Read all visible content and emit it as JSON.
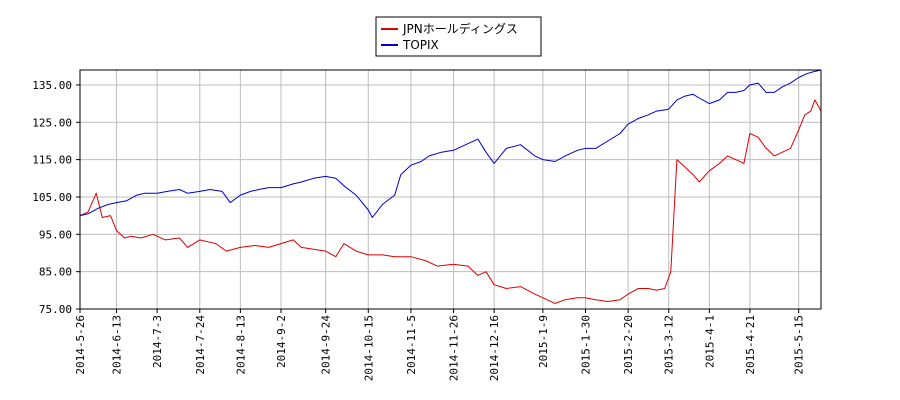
{
  "chart_data": {
    "type": "line",
    "title": "",
    "xlabel": "",
    "ylabel": "",
    "ylim": [
      75,
      139
    ],
    "xlim": [
      "2014-05-26",
      "2015-05-26"
    ],
    "y_ticks": [
      "75.00",
      "85.00",
      "95.00",
      "105.00",
      "115.00",
      "125.00",
      "135.00"
    ],
    "x_ticks": [
      "2014-5-26",
      "2014-6-13",
      "2014-7-3",
      "2014-7-24",
      "2014-8-13",
      "2014-9-2",
      "2014-9-24",
      "2014-10-15",
      "2014-11-5",
      "2014-11-26",
      "2014-12-16",
      "2015-1-9",
      "2015-1-30",
      "2015-2-20",
      "2015-3-12",
      "2015-4-1",
      "2015-4-21",
      "2015-5-15"
    ],
    "grid": true,
    "legend_position": "top-center",
    "series": [
      {
        "name": "JPNホールディングス",
        "color": "#dd0000",
        "points": [
          [
            "2014-05-26",
            100
          ],
          [
            "2014-05-30",
            101
          ],
          [
            "2014-06-03",
            106
          ],
          [
            "2014-06-06",
            99.5
          ],
          [
            "2014-06-10",
            100
          ],
          [
            "2014-06-13",
            96
          ],
          [
            "2014-06-17",
            94
          ],
          [
            "2014-06-20",
            94.5
          ],
          [
            "2014-06-25",
            94
          ],
          [
            "2014-07-01",
            95
          ],
          [
            "2014-07-07",
            93.5
          ],
          [
            "2014-07-14",
            94
          ],
          [
            "2014-07-18",
            91.5
          ],
          [
            "2014-07-24",
            93.5
          ],
          [
            "2014-07-28",
            93
          ],
          [
            "2014-08-01",
            92.5
          ],
          [
            "2014-08-06",
            90.5
          ],
          [
            "2014-08-13",
            91.5
          ],
          [
            "2014-08-20",
            92
          ],
          [
            "2014-08-27",
            91.5
          ],
          [
            "2014-09-02",
            92.5
          ],
          [
            "2014-09-08",
            93.5
          ],
          [
            "2014-09-12",
            91.5
          ],
          [
            "2014-09-18",
            91
          ],
          [
            "2014-09-24",
            90.5
          ],
          [
            "2014-09-29",
            89
          ],
          [
            "2014-10-03",
            92.5
          ],
          [
            "2014-10-09",
            90.5
          ],
          [
            "2014-10-15",
            89.5
          ],
          [
            "2014-10-22",
            89.5
          ],
          [
            "2014-10-28",
            89
          ],
          [
            "2014-11-05",
            89
          ],
          [
            "2014-11-12",
            88
          ],
          [
            "2014-11-18",
            86.5
          ],
          [
            "2014-11-26",
            87
          ],
          [
            "2014-12-03",
            86.5
          ],
          [
            "2014-12-08",
            84
          ],
          [
            "2014-12-12",
            85
          ],
          [
            "2014-12-16",
            81.5
          ],
          [
            "2014-12-22",
            80.5
          ],
          [
            "2014-12-29",
            81
          ],
          [
            "2015-01-05",
            79
          ],
          [
            "2015-01-09",
            78
          ],
          [
            "2015-01-15",
            76.5
          ],
          [
            "2015-01-20",
            77.5
          ],
          [
            "2015-01-26",
            78
          ],
          [
            "2015-01-30",
            78
          ],
          [
            "2015-02-04",
            77.5
          ],
          [
            "2015-02-10",
            77
          ],
          [
            "2015-02-16",
            77.5
          ],
          [
            "2015-02-20",
            79
          ],
          [
            "2015-02-25",
            80.5
          ],
          [
            "2015-03-02",
            80.5
          ],
          [
            "2015-03-06",
            80
          ],
          [
            "2015-03-10",
            80.5
          ],
          [
            "2015-03-13",
            85
          ],
          [
            "2015-03-16",
            115
          ],
          [
            "2015-03-20",
            113
          ],
          [
            "2015-03-24",
            111
          ],
          [
            "2015-03-27",
            109
          ],
          [
            "2015-04-01",
            112
          ],
          [
            "2015-04-06",
            114
          ],
          [
            "2015-04-10",
            116
          ],
          [
            "2015-04-14",
            115
          ],
          [
            "2015-04-18",
            114
          ],
          [
            "2015-04-21",
            122
          ],
          [
            "2015-04-25",
            121
          ],
          [
            "2015-04-29",
            118
          ],
          [
            "2015-05-03",
            116
          ],
          [
            "2015-05-07",
            117
          ],
          [
            "2015-05-11",
            118
          ],
          [
            "2015-05-15",
            123
          ],
          [
            "2015-05-18",
            127
          ],
          [
            "2015-05-21",
            128
          ],
          [
            "2015-05-23",
            131
          ],
          [
            "2015-05-26",
            128
          ]
        ]
      },
      {
        "name": "TOPIX",
        "color": "#0000cc",
        "points": [
          [
            "2014-05-26",
            100
          ],
          [
            "2014-05-30",
            100.5
          ],
          [
            "2014-06-04",
            102
          ],
          [
            "2014-06-09",
            103
          ],
          [
            "2014-06-13",
            103.5
          ],
          [
            "2014-06-18",
            104
          ],
          [
            "2014-06-23",
            105.5
          ],
          [
            "2014-06-27",
            106
          ],
          [
            "2014-07-03",
            106
          ],
          [
            "2014-07-08",
            106.5
          ],
          [
            "2014-07-14",
            107
          ],
          [
            "2014-07-18",
            106
          ],
          [
            "2014-07-24",
            106.5
          ],
          [
            "2014-07-29",
            107
          ],
          [
            "2014-08-04",
            106.5
          ],
          [
            "2014-08-08",
            103.5
          ],
          [
            "2014-08-13",
            105.5
          ],
          [
            "2014-08-18",
            106.5
          ],
          [
            "2014-08-22",
            107
          ],
          [
            "2014-08-27",
            107.5
          ],
          [
            "2014-09-02",
            107.5
          ],
          [
            "2014-09-08",
            108.5
          ],
          [
            "2014-09-12",
            109
          ],
          [
            "2014-09-18",
            110
          ],
          [
            "2014-09-24",
            110.5
          ],
          [
            "2014-09-29",
            110
          ],
          [
            "2014-10-03",
            108
          ],
          [
            "2014-10-09",
            105.5
          ],
          [
            "2014-10-15",
            101.5
          ],
          [
            "2014-10-17",
            99.5
          ],
          [
            "2014-10-22",
            103
          ],
          [
            "2014-10-28",
            105.5
          ],
          [
            "2014-10-31",
            111
          ],
          [
            "2014-11-05",
            113.5
          ],
          [
            "2014-11-10",
            114.5
          ],
          [
            "2014-11-14",
            116
          ],
          [
            "2014-11-20",
            117
          ],
          [
            "2014-11-26",
            117.5
          ],
          [
            "2014-12-02",
            119
          ],
          [
            "2014-12-08",
            120.5
          ],
          [
            "2014-12-12",
            117
          ],
          [
            "2014-12-16",
            114
          ],
          [
            "2014-12-22",
            118
          ],
          [
            "2014-12-29",
            119
          ],
          [
            "2015-01-05",
            116
          ],
          [
            "2015-01-09",
            115
          ],
          [
            "2015-01-15",
            114.5
          ],
          [
            "2015-01-20",
            116
          ],
          [
            "2015-01-26",
            117.5
          ],
          [
            "2015-01-30",
            118
          ],
          [
            "2015-02-04",
            118
          ],
          [
            "2015-02-10",
            120
          ],
          [
            "2015-02-16",
            122
          ],
          [
            "2015-02-20",
            124.5
          ],
          [
            "2015-02-25",
            126
          ],
          [
            "2015-03-02",
            127
          ],
          [
            "2015-03-06",
            128
          ],
          [
            "2015-03-12",
            128.5
          ],
          [
            "2015-03-16",
            131
          ],
          [
            "2015-03-20",
            132
          ],
          [
            "2015-03-24",
            132.5
          ],
          [
            "2015-03-27",
            131.5
          ],
          [
            "2015-04-01",
            130
          ],
          [
            "2015-04-06",
            131
          ],
          [
            "2015-04-10",
            133
          ],
          [
            "2015-04-14",
            133
          ],
          [
            "2015-04-18",
            133.5
          ],
          [
            "2015-04-21",
            135
          ],
          [
            "2015-04-25",
            135.5
          ],
          [
            "2015-04-29",
            133
          ],
          [
            "2015-05-03",
            133
          ],
          [
            "2015-05-07",
            134.5
          ],
          [
            "2015-05-11",
            135.5
          ],
          [
            "2015-05-15",
            137
          ],
          [
            "2015-05-19",
            138
          ],
          [
            "2015-05-22",
            138.5
          ],
          [
            "2015-05-26",
            139
          ]
        ]
      }
    ]
  }
}
